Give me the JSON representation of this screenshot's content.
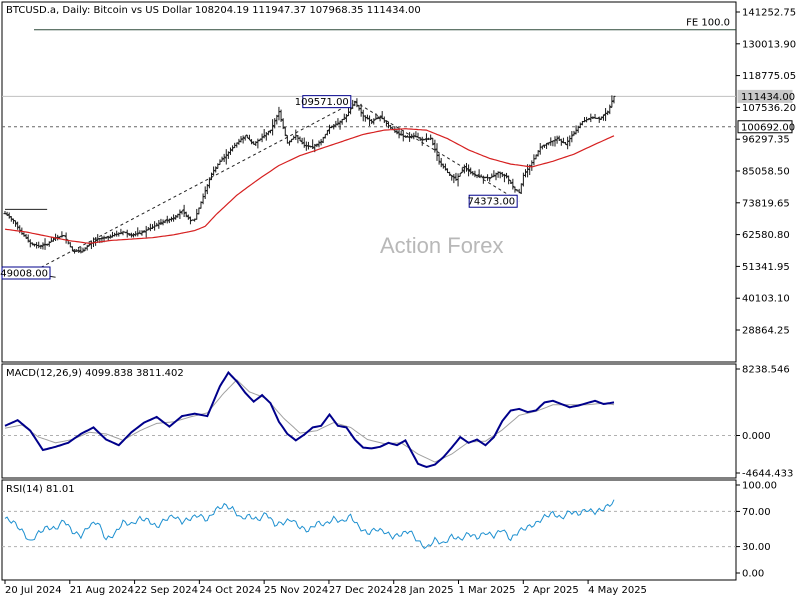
{
  "header": {
    "symbol": "BTCUSD.a, Daily:  Bitcoin vs US Dollar  108204.19 111947.37 107968.35 111434.00"
  },
  "watermark": "Action Forex",
  "colors": {
    "candle": "#1a1a1a",
    "ma": "#d62020",
    "fe_line": "#2e4a3a",
    "macd_main": "#00008b",
    "macd_signal": "#a0a0a0",
    "rsi": "#1e90d0",
    "grid_level": "#666666"
  },
  "chart_data": [
    {
      "type": "candlestick",
      "panel": "price",
      "title": "BTCUSD.a, Daily:  Bitcoin vs US Dollar",
      "ohlc_last": {
        "open": 108204.19,
        "high": 111947.37,
        "low": 107968.35,
        "close": 111434.0
      },
      "y_ticks": [
        "141252.75",
        "130013.90",
        "118775.05",
        "107536.20",
        "96297.35",
        "85058.50",
        "73819.65",
        "62580.80",
        "51341.95",
        "40103.10",
        "28864.25"
      ],
      "x_ticks": [
        "20 Jul 2024",
        "21 Aug 2024",
        "22 Sep 2024",
        "24 Oct 2024",
        "25 Nov 2024",
        "27 Dec 2024",
        "28 Jan 2025",
        "1 Mar 2025",
        "2 Apr 2025",
        "4 May 2025"
      ],
      "ylim": [
        20000,
        145000
      ],
      "anchors": [
        [
          0,
          70000
        ],
        [
          4,
          67500
        ],
        [
          8,
          63000
        ],
        [
          12,
          59500
        ],
        [
          16,
          58500
        ],
        [
          20,
          59200
        ],
        [
          24,
          61500
        ],
        [
          28,
          62200
        ],
        [
          32,
          57000
        ],
        [
          36,
          56500
        ],
        [
          40,
          59000
        ],
        [
          44,
          61000
        ],
        [
          48,
          61500
        ],
        [
          52,
          62500
        ],
        [
          56,
          63500
        ],
        [
          60,
          62500
        ],
        [
          64,
          63000
        ],
        [
          68,
          64500
        ],
        [
          72,
          66000
        ],
        [
          76,
          67500
        ],
        [
          80,
          68500
        ],
        [
          84,
          71000
        ],
        [
          88,
          67500
        ],
        [
          90,
          68000
        ],
        [
          94,
          76000
        ],
        [
          98,
          84000
        ],
        [
          102,
          88500
        ],
        [
          106,
          91500
        ],
        [
          110,
          95000
        ],
        [
          114,
          97500
        ],
        [
          118,
          94500
        ],
        [
          122,
          97000
        ],
        [
          126,
          99500
        ],
        [
          130,
          106000
        ],
        [
          134,
          95000
        ],
        [
          138,
          97500
        ],
        [
          142,
          94000
        ],
        [
          146,
          93500
        ],
        [
          150,
          95500
        ],
        [
          154,
          100500
        ],
        [
          158,
          102000
        ],
        [
          162,
          104500
        ],
        [
          166,
          109571
        ],
        [
          170,
          104500
        ],
        [
          174,
          102500
        ],
        [
          178,
          104500
        ],
        [
          182,
          101000
        ],
        [
          186,
          98500
        ],
        [
          190,
          97000
        ],
        [
          194,
          97500
        ],
        [
          198,
          96000
        ],
        [
          202,
          96500
        ],
        [
          206,
          88500
        ],
        [
          210,
          84500
        ],
        [
          214,
          82000
        ],
        [
          218,
          86500
        ],
        [
          222,
          84000
        ],
        [
          226,
          83000
        ],
        [
          230,
          82500
        ],
        [
          234,
          84500
        ],
        [
          238,
          83000
        ],
        [
          242,
          78500
        ],
        [
          244,
          77500
        ],
        [
          246,
          83500
        ],
        [
          250,
          88000
        ],
        [
          254,
          93500
        ],
        [
          258,
          95000
        ],
        [
          262,
          96500
        ],
        [
          266,
          94500
        ],
        [
          270,
          98500
        ],
        [
          274,
          102500
        ],
        [
          278,
          104000
        ],
        [
          282,
          103500
        ],
        [
          286,
          106000
        ],
        [
          289,
          111434
        ]
      ],
      "ma": [
        [
          0,
          64500
        ],
        [
          10,
          63500
        ],
        [
          20,
          62000
        ],
        [
          30,
          60500
        ],
        [
          40,
          59500
        ],
        [
          50,
          60500
        ],
        [
          60,
          61000
        ],
        [
          70,
          61500
        ],
        [
          80,
          62500
        ],
        [
          90,
          64000
        ],
        [
          95,
          65500
        ],
        [
          100,
          69500
        ],
        [
          110,
          76500
        ],
        [
          120,
          82000
        ],
        [
          130,
          87000
        ],
        [
          140,
          90500
        ],
        [
          150,
          93000
        ],
        [
          160,
          95500
        ],
        [
          170,
          98000
        ],
        [
          180,
          99500
        ],
        [
          190,
          100000
        ],
        [
          200,
          99500
        ],
        [
          210,
          96500
        ],
        [
          220,
          92500
        ],
        [
          230,
          89500
        ],
        [
          240,
          87500
        ],
        [
          250,
          86500
        ],
        [
          260,
          88500
        ],
        [
          270,
          91000
        ],
        [
          280,
          94500
        ],
        [
          289,
          97500
        ]
      ],
      "levels": {
        "fe_label": "FE 100.0",
        "fe_value": 135000,
        "current_label": "111434.00",
        "current_value": 111434,
        "dashed_label": "100692.00",
        "dashed_value": 100692
      },
      "annotations": [
        {
          "text": "109571.00",
          "bar": 166,
          "value": 109571
        },
        {
          "text": "74373.00",
          "bar": 244,
          "value": 74373
        },
        {
          "text": "49008.00",
          "bar": 12,
          "value": 49008
        }
      ],
      "trendlines": [
        {
          "from": [
            12,
            49008
          ],
          "to": [
            166,
            109571
          ],
          "style": "dashed"
        },
        {
          "from": [
            166,
            109571
          ],
          "to": [
            244,
            74373
          ],
          "style": "dashed"
        },
        {
          "from": [
            0,
            71500
          ],
          "to": [
            20,
            71500
          ],
          "style": "solid"
        },
        {
          "from": [
            12,
            49008
          ],
          "to": [
            24,
            47500
          ],
          "style": "solid"
        }
      ]
    },
    {
      "type": "line",
      "panel": "macd",
      "label": "MACD(12,26,9) 4099.838 3811.402",
      "y_ticks": [
        "8238.546",
        "0.000",
        "-4644.433"
      ],
      "ylim": [
        -5300,
        8800
      ],
      "macd": [
        [
          0,
          1200
        ],
        [
          6,
          1900
        ],
        [
          12,
          600
        ],
        [
          18,
          -1800
        ],
        [
          24,
          -1400
        ],
        [
          30,
          -900
        ],
        [
          36,
          200
        ],
        [
          42,
          1000
        ],
        [
          48,
          -500
        ],
        [
          54,
          -1200
        ],
        [
          60,
          400
        ],
        [
          66,
          1600
        ],
        [
          72,
          2300
        ],
        [
          78,
          1100
        ],
        [
          84,
          2400
        ],
        [
          90,
          2700
        ],
        [
          96,
          2400
        ],
        [
          102,
          6100
        ],
        [
          106,
          7800
        ],
        [
          110,
          6700
        ],
        [
          114,
          5300
        ],
        [
          118,
          4200
        ],
        [
          122,
          5000
        ],
        [
          126,
          4000
        ],
        [
          130,
          1700
        ],
        [
          134,
          200
        ],
        [
          138,
          -600
        ],
        [
          142,
          100
        ],
        [
          146,
          1000
        ],
        [
          150,
          1200
        ],
        [
          154,
          2600
        ],
        [
          158,
          1200
        ],
        [
          162,
          1000
        ],
        [
          166,
          -500
        ],
        [
          170,
          -1500
        ],
        [
          174,
          -1600
        ],
        [
          178,
          -1400
        ],
        [
          182,
          -900
        ],
        [
          186,
          -1200
        ],
        [
          190,
          -600
        ],
        [
          196,
          -3500
        ],
        [
          200,
          -3900
        ],
        [
          204,
          -3600
        ],
        [
          208,
          -2700
        ],
        [
          212,
          -1500
        ],
        [
          216,
          -200
        ],
        [
          220,
          -900
        ],
        [
          224,
          -500
        ],
        [
          228,
          -1200
        ],
        [
          232,
          -200
        ],
        [
          236,
          1800
        ],
        [
          240,
          3100
        ],
        [
          244,
          3300
        ],
        [
          248,
          2900
        ],
        [
          252,
          3100
        ],
        [
          256,
          4100
        ],
        [
          260,
          4300
        ],
        [
          264,
          3900
        ],
        [
          268,
          3500
        ],
        [
          272,
          3700
        ],
        [
          276,
          4000
        ],
        [
          280,
          4300
        ],
        [
          284,
          3900
        ],
        [
          289,
          4100
        ]
      ],
      "signal": [
        [
          0,
          900
        ],
        [
          8,
          1300
        ],
        [
          16,
          -200
        ],
        [
          24,
          -900
        ],
        [
          32,
          -500
        ],
        [
          40,
          400
        ],
        [
          48,
          200
        ],
        [
          56,
          -600
        ],
        [
          64,
          600
        ],
        [
          72,
          1500
        ],
        [
          80,
          1700
        ],
        [
          88,
          2300
        ],
        [
          96,
          2800
        ],
        [
          104,
          5300
        ],
        [
          110,
          6900
        ],
        [
          116,
          5400
        ],
        [
          124,
          4600
        ],
        [
          132,
          2200
        ],
        [
          140,
          300
        ],
        [
          148,
          600
        ],
        [
          156,
          1600
        ],
        [
          164,
          1000
        ],
        [
          172,
          -500
        ],
        [
          180,
          -1000
        ],
        [
          188,
          -900
        ],
        [
          196,
          -2300
        ],
        [
          204,
          -3300
        ],
        [
          212,
          -2300
        ],
        [
          220,
          -800
        ],
        [
          228,
          -700
        ],
        [
          236,
          700
        ],
        [
          244,
          2500
        ],
        [
          252,
          3000
        ],
        [
          260,
          3800
        ],
        [
          268,
          3800
        ],
        [
          276,
          3800
        ],
        [
          284,
          4000
        ],
        [
          289,
          3811
        ]
      ]
    },
    {
      "type": "line",
      "panel": "rsi",
      "label": "RSI(14) 81.01",
      "y_ticks": [
        "100.00",
        "70.00",
        "30.00",
        "0.00"
      ],
      "levels": [
        70,
        30
      ],
      "ylim": [
        0,
        100
      ],
      "values": [
        [
          0,
          62
        ],
        [
          4,
          58
        ],
        [
          8,
          48
        ],
        [
          12,
          35
        ],
        [
          16,
          46
        ],
        [
          20,
          52
        ],
        [
          24,
          50
        ],
        [
          28,
          60
        ],
        [
          32,
          47
        ],
        [
          36,
          42
        ],
        [
          40,
          54
        ],
        [
          44,
          58
        ],
        [
          48,
          38
        ],
        [
          52,
          44
        ],
        [
          56,
          58
        ],
        [
          60,
          55
        ],
        [
          64,
          62
        ],
        [
          68,
          60
        ],
        [
          72,
          52
        ],
        [
          76,
          61
        ],
        [
          80,
          65
        ],
        [
          84,
          58
        ],
        [
          88,
          62
        ],
        [
          92,
          66
        ],
        [
          96,
          60
        ],
        [
          100,
          72
        ],
        [
          104,
          77
        ],
        [
          108,
          73
        ],
        [
          112,
          62
        ],
        [
          116,
          65
        ],
        [
          120,
          60
        ],
        [
          124,
          68
        ],
        [
          128,
          55
        ],
        [
          132,
          57
        ],
        [
          136,
          61
        ],
        [
          140,
          52
        ],
        [
          144,
          48
        ],
        [
          148,
          57
        ],
        [
          152,
          55
        ],
        [
          156,
          62
        ],
        [
          160,
          58
        ],
        [
          164,
          65
        ],
        [
          168,
          52
        ],
        [
          172,
          45
        ],
        [
          176,
          50
        ],
        [
          180,
          47
        ],
        [
          184,
          41
        ],
        [
          188,
          44
        ],
        [
          192,
          48
        ],
        [
          196,
          36
        ],
        [
          200,
          28
        ],
        [
          204,
          38
        ],
        [
          208,
          33
        ],
        [
          212,
          42
        ],
        [
          216,
          38
        ],
        [
          220,
          45
        ],
        [
          224,
          40
        ],
        [
          228,
          46
        ],
        [
          232,
          42
        ],
        [
          236,
          50
        ],
        [
          240,
          38
        ],
        [
          244,
          48
        ],
        [
          248,
          52
        ],
        [
          252,
          56
        ],
        [
          256,
          64
        ],
        [
          260,
          68
        ],
        [
          264,
          62
        ],
        [
          268,
          70
        ],
        [
          272,
          67
        ],
        [
          276,
          72
        ],
        [
          280,
          69
        ],
        [
          284,
          73
        ],
        [
          289,
          81
        ]
      ]
    }
  ]
}
